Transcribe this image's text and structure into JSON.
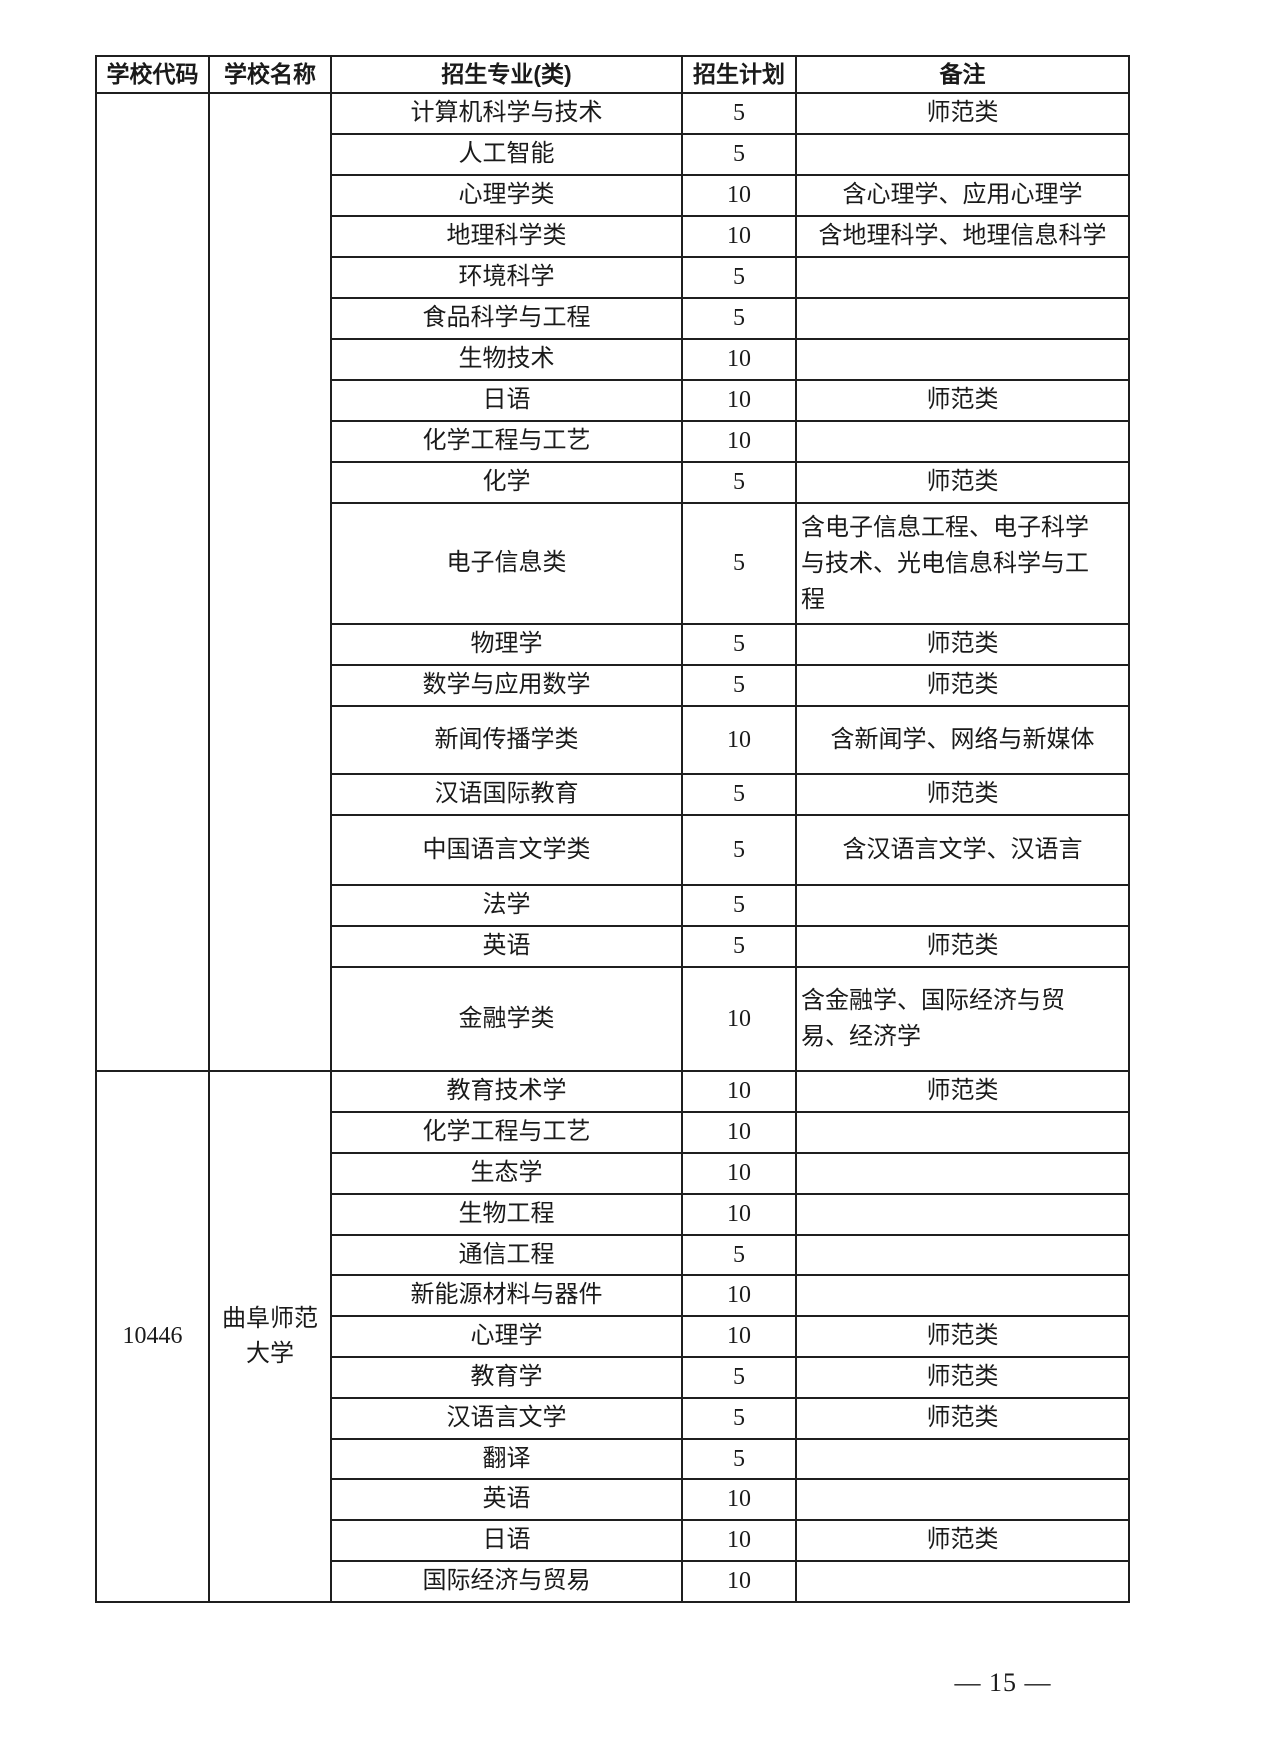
{
  "page": {
    "footer_page_number": "— 15 —"
  },
  "table": {
    "columns": [
      "学校代码",
      "学校名称",
      "招生专业(类)",
      "招生计划",
      "备注"
    ],
    "sections": [
      {
        "school_code": "",
        "school_name": "",
        "rows": [
          {
            "major": "计算机科学与技术",
            "plan": "5",
            "remark": "师范类"
          },
          {
            "major": "人工智能",
            "plan": "5",
            "remark": ""
          },
          {
            "major": "心理学类",
            "plan": "10",
            "remark": "含心理学、应用心理学"
          },
          {
            "major": "地理科学类",
            "plan": "10",
            "remark": "含地理科学、地理信息科学"
          },
          {
            "major": "环境科学",
            "plan": "5",
            "remark": ""
          },
          {
            "major": "食品科学与工程",
            "plan": "5",
            "remark": ""
          },
          {
            "major": "生物技术",
            "plan": "10",
            "remark": ""
          },
          {
            "major": "日语",
            "plan": "10",
            "remark": "师范类"
          },
          {
            "major": "化学工程与工艺",
            "plan": "10",
            "remark": ""
          },
          {
            "major": "化学",
            "plan": "5",
            "remark": "师范类"
          },
          {
            "major": "电子信息类",
            "plan": "5",
            "remark": "含电子信息工程、电子科学与技术、光电信息科学与工程"
          },
          {
            "major": "物理学",
            "plan": "5",
            "remark": "师范类"
          },
          {
            "major": "数学与应用数学",
            "plan": "5",
            "remark": "师范类"
          },
          {
            "major": "新闻传播学类",
            "plan": "10",
            "remark": "含新闻学、网络与新媒体"
          },
          {
            "major": "汉语国际教育",
            "plan": "5",
            "remark": "师范类"
          },
          {
            "major": "中国语言文学类",
            "plan": "5",
            "remark": "含汉语言文学、汉语言"
          },
          {
            "major": "法学",
            "plan": "5",
            "remark": ""
          },
          {
            "major": "英语",
            "plan": "5",
            "remark": "师范类"
          },
          {
            "major": "金融学类",
            "plan": "10",
            "remark": "含金融学、国际经济与贸易、经济学"
          }
        ]
      },
      {
        "school_code": "10446",
        "school_name": "曲阜师范大学",
        "rows": [
          {
            "major": "教育技术学",
            "plan": "10",
            "remark": "师范类"
          },
          {
            "major": "化学工程与工艺",
            "plan": "10",
            "remark": ""
          },
          {
            "major": "生态学",
            "plan": "10",
            "remark": ""
          },
          {
            "major": "生物工程",
            "plan": "10",
            "remark": ""
          },
          {
            "major": "通信工程",
            "plan": "5",
            "remark": ""
          },
          {
            "major": "新能源材料与器件",
            "plan": "10",
            "remark": ""
          },
          {
            "major": "心理学",
            "plan": "10",
            "remark": "师范类"
          },
          {
            "major": "教育学",
            "plan": "5",
            "remark": "师范类"
          },
          {
            "major": "汉语言文学",
            "plan": "5",
            "remark": "师范类"
          },
          {
            "major": "翻译",
            "plan": "5",
            "remark": ""
          },
          {
            "major": "英语",
            "plan": "10",
            "remark": ""
          },
          {
            "major": "日语",
            "plan": "10",
            "remark": "师范类"
          },
          {
            "major": "国际经济与贸易",
            "plan": "10",
            "remark": ""
          }
        ]
      }
    ]
  }
}
